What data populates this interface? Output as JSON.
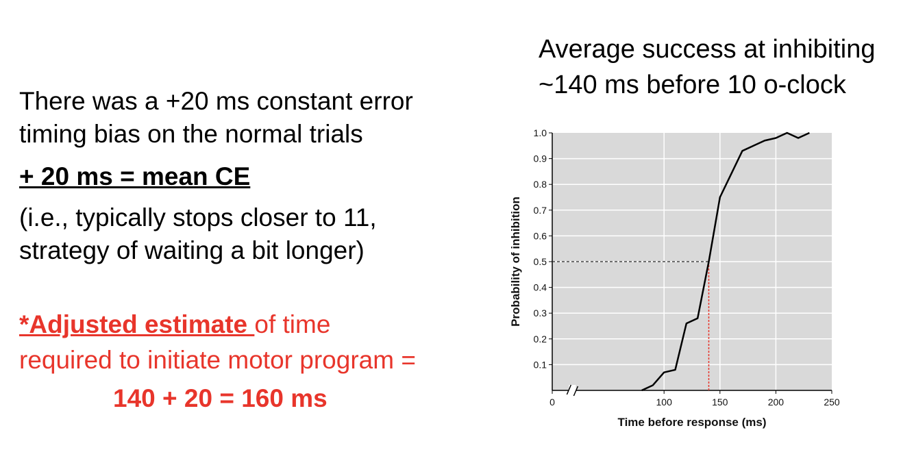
{
  "left_text": {
    "line1": "There was a +20 ms constant error",
    "line2": "timing bias on the normal trials",
    "mean_ce": "+ 20 ms = mean CE",
    "note1": "(i.e., typically stops closer to 11,",
    "note2": "strategy of waiting a bit longer)",
    "adjusted_star": "*Adjusted estimate ",
    "adjusted_rest": "of time",
    "required_line": "required to initiate motor program =",
    "calculation": "140 + 20 = 160 ms"
  },
  "right_text": {
    "line1": "Average success at inhibiting",
    "line2": "~140 ms before 10 o-clock"
  },
  "colors": {
    "accent_red": "#e8352b",
    "plot_bg": "#d9d9d9",
    "grid": "#ffffff",
    "line": "#000000"
  },
  "chart_data": {
    "type": "line",
    "xlabel": "Time before response (ms)",
    "ylabel": "Probability of inhibition",
    "xlim": [
      0,
      250
    ],
    "ylim": [
      0,
      1.0
    ],
    "x_break": true,
    "x_ticks": [
      0,
      100,
      150,
      200,
      250
    ],
    "y_ticks": [
      0.1,
      0.2,
      0.3,
      0.4,
      0.5,
      0.6,
      0.7,
      0.8,
      0.9,
      1.0
    ],
    "grid": true,
    "series": [
      {
        "x": [
          80,
          90,
          100,
          110,
          120,
          130,
          140,
          150,
          160,
          170,
          180,
          190,
          200,
          210,
          220,
          230
        ],
        "y": [
          0.0,
          0.02,
          0.07,
          0.08,
          0.26,
          0.28,
          0.5,
          0.75,
          0.84,
          0.93,
          0.95,
          0.97,
          0.98,
          1.0,
          0.98,
          1.0
        ]
      }
    ],
    "reference": {
      "x": 140,
      "y": 0.5
    }
  }
}
